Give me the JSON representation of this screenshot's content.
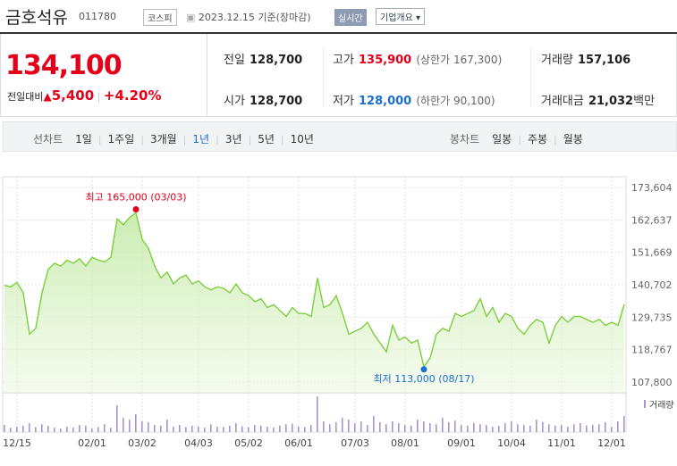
{
  "header": {
    "name": "금호석유",
    "code": "011780",
    "market": "코스피",
    "date": "2023.12.15 기준(장마감)",
    "realtime": "실시간",
    "overview": "기업개요"
  },
  "price": {
    "current": "134,100",
    "change_label": "전일대비",
    "change": "5,400",
    "change_pct": "+4.20%"
  },
  "quote": {
    "rows": [
      [
        {
          "label": "전일",
          "value": "128,700"
        },
        {
          "label": "고가",
          "value": "135,900",
          "note": "(상한가 167,300)"
        },
        {
          "label": "거래량",
          "value": "157,106"
        }
      ],
      [
        {
          "label": "시가",
          "value": "128,700"
        },
        {
          "label": "저가",
          "value": "128,000",
          "note": "(하한가 90,100)"
        },
        {
          "label": "거래대금",
          "value": "21,032",
          "unit": "백만"
        }
      ]
    ]
  },
  "tabs": {
    "line_label": "선차트",
    "line": [
      "1일",
      "1주일",
      "3개월",
      "1년",
      "3년",
      "5년",
      "10년"
    ],
    "selected": "1년",
    "candle_label": "봉차트",
    "candle": [
      "일봉",
      "주봉",
      "월봉"
    ]
  },
  "chart_data": [
    {
      "type": "line",
      "color": "#7ccf3c",
      "categories": [
        null,
        null,
        "12/15",
        null,
        null,
        null,
        null,
        null,
        null,
        null,
        null,
        null,
        null,
        null,
        "02/01",
        null,
        null,
        null,
        null,
        null,
        null,
        null,
        "03/02",
        null,
        null,
        null,
        null,
        null,
        null,
        null,
        null,
        "04/03",
        null,
        null,
        null,
        null,
        null,
        null,
        null,
        "05/02",
        null,
        null,
        null,
        null,
        null,
        null,
        null,
        "06/01",
        null,
        null,
        null,
        null,
        null,
        null,
        null,
        null,
        "07/03",
        null,
        null,
        null,
        null,
        null,
        null,
        null,
        "08/01",
        null,
        null,
        null,
        null,
        null,
        null,
        null,
        null,
        "09/01",
        null,
        null,
        null,
        null,
        null,
        null,
        null,
        "10/04",
        null,
        null,
        null,
        null,
        null,
        null,
        null,
        "11/01",
        null,
        null,
        null,
        null,
        null,
        null,
        null,
        "12/01",
        null,
        null
      ],
      "values": [
        140500,
        140000,
        141500,
        138000,
        124000,
        126000,
        138000,
        146000,
        148000,
        147000,
        149000,
        148000,
        149500,
        147000,
        150000,
        149000,
        148500,
        150000,
        163000,
        161000,
        163500,
        165000,
        156000,
        153000,
        147000,
        143000,
        145000,
        141000,
        143000,
        144000,
        141000,
        142000,
        140000,
        139000,
        140000,
        139500,
        138000,
        141000,
        138000,
        137000,
        135000,
        136000,
        133000,
        134000,
        132000,
        130000,
        133000,
        131000,
        131000,
        130000,
        143000,
        133000,
        134000,
        137000,
        131000,
        124000,
        125000,
        126000,
        128000,
        124000,
        121000,
        118000,
        127000,
        122000,
        123000,
        121000,
        122000,
        113000,
        116000,
        124000,
        126000,
        125000,
        131000,
        130000,
        131000,
        132000,
        136000,
        130000,
        133000,
        128000,
        131000,
        130000,
        126000,
        124000,
        127000,
        129000,
        128000,
        121000,
        127000,
        130000,
        128000,
        130000,
        130000,
        129000,
        128000,
        129000,
        127000,
        128000,
        127000,
        134100
      ],
      "ylim": [
        107800,
        173604
      ],
      "yticks": [
        {
          "value": 173604,
          "label": "173,604"
        },
        {
          "value": 162637,
          "label": "162,637"
        },
        {
          "value": 151669,
          "label": "151,669"
        },
        {
          "value": 140702,
          "label": "140,702"
        },
        {
          "value": 129735,
          "label": "129,735"
        },
        {
          "value": 118767,
          "label": "118,767"
        },
        {
          "value": 107800,
          "label": "107,800"
        }
      ],
      "grid": true,
      "annotations": [
        {
          "text": "최고 165,000 (03/03)",
          "value": 165000,
          "color": "#e4001b"
        },
        {
          "text": "최저 113,000 (08/17)",
          "value": 113000,
          "color": "#1a6fd0"
        }
      ]
    },
    {
      "type": "bar",
      "name": "거래량",
      "color": "#a795cf",
      "ylim": [
        0,
        100
      ],
      "values": [
        20,
        12,
        15,
        18,
        25,
        14,
        22,
        18,
        12,
        10,
        15,
        12,
        20,
        18,
        10,
        14,
        22,
        12,
        75,
        40,
        35,
        50,
        30,
        28,
        20,
        18,
        35,
        15,
        20,
        14,
        18,
        16,
        12,
        22,
        15,
        14,
        18,
        25,
        16,
        14,
        20,
        18,
        15,
        12,
        18,
        22,
        24,
        16,
        14,
        20,
        100,
        30,
        22,
        28,
        40,
        35,
        25,
        30,
        20,
        45,
        28,
        22,
        30,
        25,
        20,
        18,
        35,
        30,
        25,
        22,
        40,
        28,
        32,
        20,
        18,
        26,
        22,
        20,
        15,
        18,
        25,
        30,
        22,
        20,
        18,
        35,
        28,
        22,
        18,
        20,
        15,
        22,
        25,
        18,
        20,
        22,
        28,
        15,
        30,
        45
      ]
    }
  ]
}
